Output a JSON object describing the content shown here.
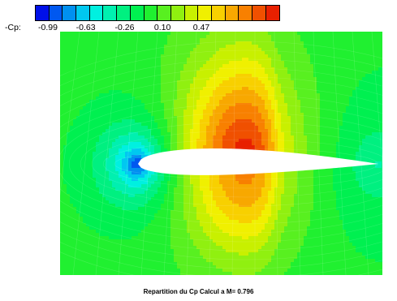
{
  "chart_data": {
    "type": "heatmap",
    "title": "Repartition du Cp  Calcul a M= 0.796",
    "colorbar": {
      "label": "-Cp:",
      "tick_labels": [
        "-0.99",
        "-0.63",
        "-0.26",
        "0.10",
        "0.47"
      ],
      "tick_values": [
        -0.99,
        -0.63,
        -0.26,
        0.1,
        0.47
      ],
      "range": [
        -0.99,
        1.27
      ],
      "colors": [
        "#0010e8",
        "#0058f0",
        "#0090f0",
        "#00c8f0",
        "#00f0e0",
        "#00f0b0",
        "#00f080",
        "#00f050",
        "#20f030",
        "#58f020",
        "#90f010",
        "#c8f000",
        "#f0f000",
        "#f8d000",
        "#f8a800",
        "#f88000",
        "#f05000",
        "#e82000"
      ]
    },
    "field": {
      "freestream_level": 0.08,
      "leading_edge_level": -0.99,
      "suction_peak_level": 1.27,
      "upper_max": 1.27,
      "lower_max": 1.0
    }
  }
}
